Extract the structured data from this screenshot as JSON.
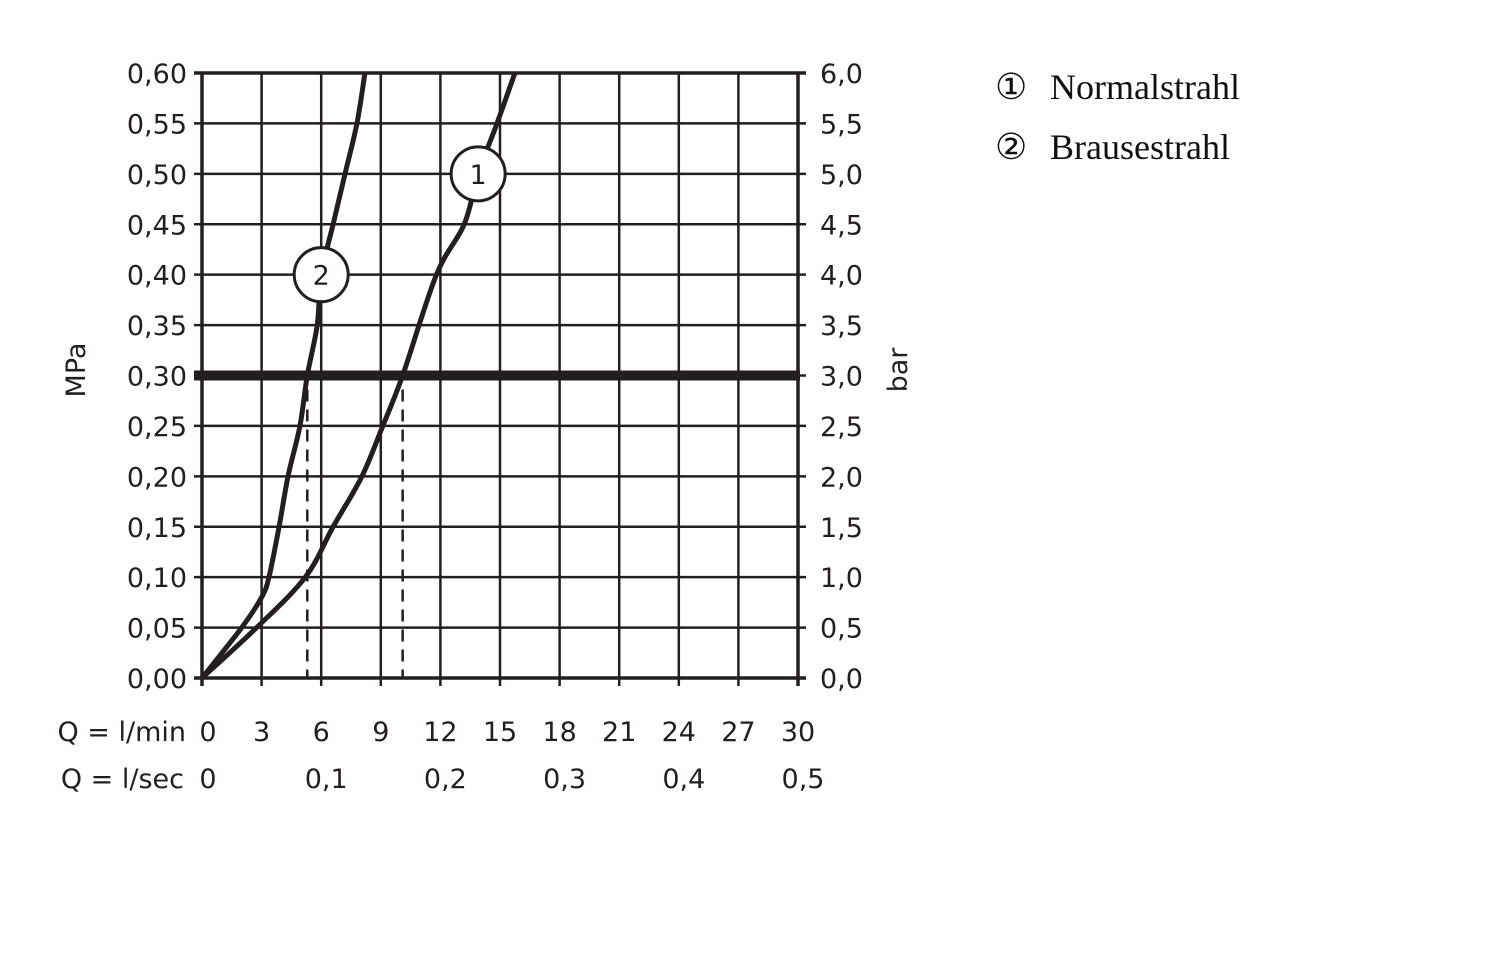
{
  "chart_data": {
    "type": "line",
    "xlabel_rows": [
      {
        "label": "Q = l/min",
        "ticks": [
          "0",
          "3",
          "6",
          "9",
          "12",
          "15",
          "18",
          "21",
          "24",
          "27",
          "30"
        ],
        "values": [
          0,
          3,
          6,
          9,
          12,
          15,
          18,
          21,
          24,
          27,
          30
        ]
      },
      {
        "label": "Q = l/sec",
        "ticks": [
          "0",
          "0,1",
          "0,2",
          "0,3",
          "0,4",
          "0,5"
        ],
        "values": [
          0,
          6,
          12,
          18,
          24,
          30
        ]
      }
    ],
    "ylabel_left": "MPa",
    "ylabel_right": "bar",
    "yticks_left": [
      "0,00",
      "0,05",
      "0,10",
      "0,15",
      "0,20",
      "0,25",
      "0,30",
      "0,35",
      "0,40",
      "0,45",
      "0,50",
      "0,55",
      "0,60"
    ],
    "yticks_right": [
      "0,0",
      "0,5",
      "1,0",
      "1,5",
      "2,0",
      "2,5",
      "3,0",
      "3,5",
      "4,0",
      "4,5",
      "5,0",
      "5,5",
      "6,0"
    ],
    "xlim": [
      0,
      30
    ],
    "ylim": [
      0,
      0.6
    ],
    "grid": true,
    "reference_line": {
      "y": 0.3
    },
    "drop_lines": [
      {
        "x": 5.3,
        "y": 0.3
      },
      {
        "x": 10.1,
        "y": 0.3
      }
    ],
    "series": [
      {
        "name": "Normalstrahl",
        "marker": "1",
        "color": "#231f20",
        "x": [
          0,
          2.75,
          5.2,
          6.6,
          8.05,
          9.1,
          10.1,
          11.8,
          13.2,
          13.9,
          14.85,
          15.75
        ],
        "y": [
          0,
          0.05,
          0.1,
          0.15,
          0.2,
          0.25,
          0.3,
          0.4,
          0.45,
          0.5,
          0.55,
          0.6
        ]
      },
      {
        "name": "Brausestrahl",
        "marker": "2",
        "color": "#231f20",
        "x": [
          0,
          2.0,
          3.0,
          3.37,
          3.88,
          4.33,
          4.93,
          5.3,
          5.8,
          6.0,
          6.6,
          7.2,
          7.8,
          8.2
        ],
        "y": [
          0,
          0.05,
          0.08,
          0.1,
          0.15,
          0.2,
          0.25,
          0.3,
          0.35,
          0.4,
          0.45,
          0.5,
          0.55,
          0.6
        ]
      }
    ],
    "legend": {
      "placement": "right",
      "entries": [
        {
          "marker": "①",
          "label": "Normalstrahl"
        },
        {
          "marker": "②",
          "label": "Brausestrahl"
        }
      ]
    }
  }
}
